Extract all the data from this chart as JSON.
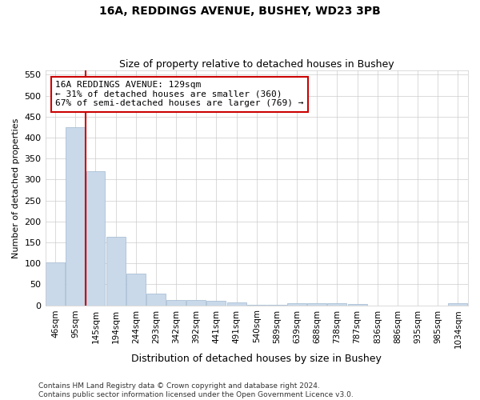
{
  "title1": "16A, REDDINGS AVENUE, BUSHEY, WD23 3PB",
  "title2": "Size of property relative to detached houses in Bushey",
  "xlabel": "Distribution of detached houses by size in Bushey",
  "ylabel": "Number of detached properties",
  "categories": [
    "46sqm",
    "95sqm",
    "145sqm",
    "194sqm",
    "244sqm",
    "293sqm",
    "342sqm",
    "392sqm",
    "441sqm",
    "491sqm",
    "540sqm",
    "589sqm",
    "639sqm",
    "688sqm",
    "738sqm",
    "787sqm",
    "836sqm",
    "886sqm",
    "935sqm",
    "985sqm",
    "1034sqm"
  ],
  "values": [
    103,
    425,
    320,
    163,
    76,
    27,
    12,
    13,
    10,
    6,
    1,
    1,
    5,
    5,
    4,
    3,
    0,
    0,
    0,
    0,
    4
  ],
  "bar_color": "#c9d9ea",
  "bar_edge_color": "#a0b8d0",
  "annotation_text": "16A REDDINGS AVENUE: 129sqm\n← 31% of detached houses are smaller (360)\n67% of semi-detached houses are larger (769) →",
  "annotation_box_color": "#ffffff",
  "annotation_box_edge_color": "#cc0000",
  "redline_x": 1.5,
  "ylim": [
    0,
    560
  ],
  "yticks": [
    0,
    50,
    100,
    150,
    200,
    250,
    300,
    350,
    400,
    450,
    500,
    550
  ],
  "footer": "Contains HM Land Registry data © Crown copyright and database right 2024.\nContains public sector information licensed under the Open Government Licence v3.0.",
  "background_color": "#ffffff",
  "grid_color": "#cccccc"
}
